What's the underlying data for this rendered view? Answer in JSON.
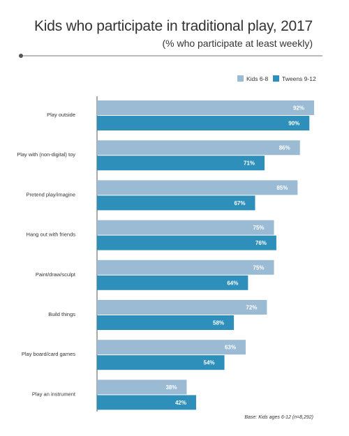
{
  "chart_data": {
    "type": "bar",
    "orientation": "horizontal",
    "title": "Kids who participate in traditional play, 2017",
    "subtitle": "(% who participate at least weekly)",
    "categories": [
      "Play outside",
      "Play with (non-digital) toy",
      "Pretend play/imagine",
      "Hang out with friends",
      "Paint/draw/sculpt",
      "Build things",
      "Play board/card games",
      "Play an instrument"
    ],
    "series": [
      {
        "name": "Kids 6-8",
        "values": [
          92,
          86,
          85,
          75,
          75,
          72,
          63,
          38
        ],
        "color": "#9bbbd4"
      },
      {
        "name": "Tweens 9-12",
        "values": [
          90,
          71,
          67,
          76,
          64,
          58,
          54,
          42
        ],
        "color": "#2f8fbb"
      }
    ],
    "value_suffix": "%",
    "xlim": [
      0,
      92
    ],
    "legend_position": "top-right",
    "grid": false,
    "note": "Base: Kids ages 6-12 (n=8,292)",
    "colors": {
      "label_text": "#ffffff",
      "axis_line": "#555555",
      "rule": "#777777"
    }
  }
}
